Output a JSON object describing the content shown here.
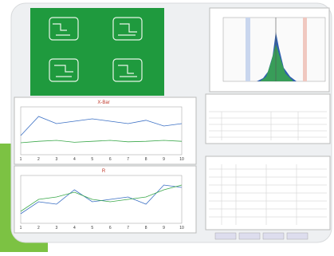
{
  "charts": [
    {
      "title": "X-Bar",
      "x_labels": [
        "1",
        "2",
        "3",
        "4",
        "5",
        "6",
        "7",
        "8",
        "9",
        "10"
      ]
    },
    {
      "title": "R",
      "x_labels": [
        "1",
        "2",
        "3",
        "4",
        "5",
        "6",
        "7",
        "8",
        "9",
        "10"
      ]
    }
  ]
}
